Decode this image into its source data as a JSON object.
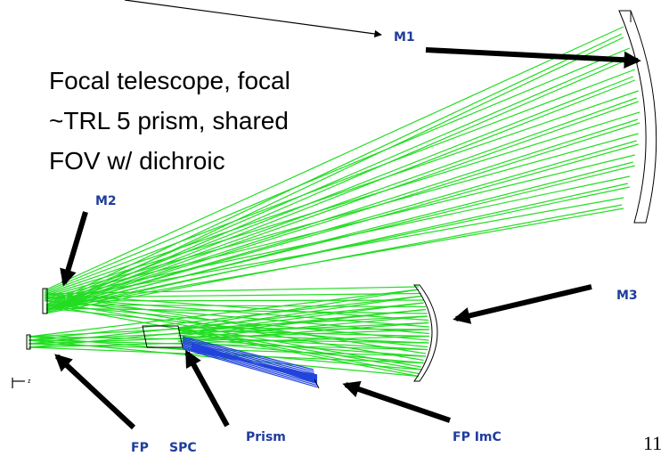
{
  "labels": {
    "m1": "M1",
    "m2": "M2",
    "m3": "M3",
    "fp": "FP",
    "spc": "SPC",
    "prism": "Prism",
    "fp_imc": "FP ImC"
  },
  "note": {
    "lines": [
      "Focal telescope, focal",
      "~TRL 5 prism, shared",
      "FOV w/ dichroic"
    ]
  },
  "axis_label": "z",
  "page_number": "11"
}
